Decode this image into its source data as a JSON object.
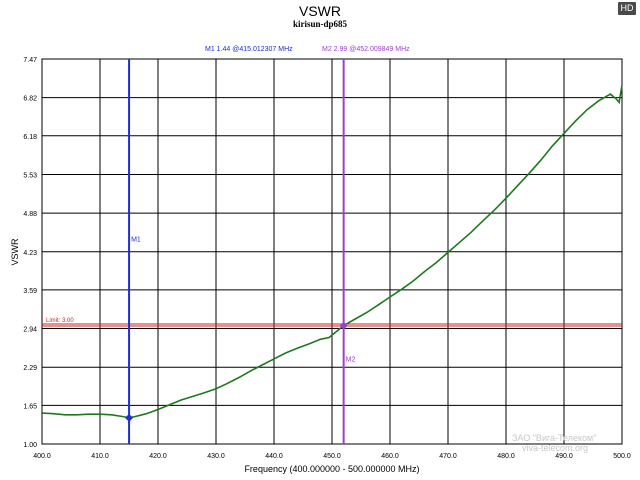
{
  "badge": "HD",
  "watermark": {
    "company": "ЗАО \"Вига-Телеком\"",
    "site": "viva-telecom.org",
    "logo_icon": "shield-logo-icon"
  },
  "chart_data": {
    "type": "line",
    "title": "VSWR",
    "subtitle": "kirisun-dp685",
    "xlabel": "Frequency (400.000000 - 500.000000 MHz)",
    "ylabel": "VSWR",
    "xlim": [
      400,
      500
    ],
    "ylim": [
      1.0,
      7.47
    ],
    "grid": true,
    "x_ticks": [
      400,
      410,
      420,
      430,
      440,
      450,
      460,
      470,
      480,
      490,
      500
    ],
    "x_tick_labels": [
      "400.0",
      "410.0",
      "420.0",
      "430.0",
      "440.0",
      "450.0",
      "460.0",
      "470.0",
      "480.0",
      "490.0",
      "500.0"
    ],
    "y_ticks": [
      1.0,
      1.65,
      2.29,
      2.94,
      3.59,
      4.23,
      4.88,
      5.53,
      6.18,
      6.82,
      7.47
    ],
    "y_tick_labels": [
      "1.00",
      "1.65",
      "2.29",
      "2.94",
      "3.59",
      "4.23",
      "4.88",
      "5.53",
      "6.18",
      "6.82",
      "7.47"
    ],
    "series": [
      {
        "color": "#1c7a1c",
        "x": [
          400,
          402,
          404,
          406,
          408,
          410,
          412,
          414,
          415,
          416,
          418,
          420,
          422,
          424,
          426,
          428,
          430,
          432,
          434,
          436,
          438,
          440,
          442,
          444,
          446,
          448,
          449.5,
          450.5,
          452,
          454,
          456,
          458,
          460,
          462,
          464,
          466,
          468,
          470,
          472,
          474,
          476,
          478,
          480,
          482,
          484,
          486,
          488,
          490,
          492,
          494,
          496,
          498,
          499,
          499.5,
          500
        ],
        "y": [
          1.52,
          1.51,
          1.49,
          1.49,
          1.5,
          1.5,
          1.49,
          1.46,
          1.44,
          1.46,
          1.51,
          1.58,
          1.66,
          1.74,
          1.8,
          1.86,
          1.93,
          2.02,
          2.12,
          2.23,
          2.33,
          2.43,
          2.53,
          2.61,
          2.68,
          2.76,
          2.79,
          2.87,
          2.99,
          3.1,
          3.21,
          3.34,
          3.47,
          3.6,
          3.74,
          3.9,
          4.05,
          4.22,
          4.39,
          4.56,
          4.75,
          4.93,
          5.13,
          5.34,
          5.55,
          5.77,
          6.01,
          6.22,
          6.43,
          6.62,
          6.77,
          6.88,
          6.8,
          6.74,
          7.03
        ]
      }
    ],
    "limit": {
      "label": "Limit: 3.00",
      "value": 3.0,
      "color": "#cc2222"
    },
    "markers": [
      {
        "name": "M1",
        "x": 415.012307,
        "y": 1.44,
        "color": "#1f2dd6",
        "readout": "M1  1.44 @415.012307 MHz"
      },
      {
        "name": "M2",
        "x": 452.009849,
        "y": 2.99,
        "color": "#9b3fd1",
        "readout": "M2  2.99 @452.009849 MHz"
      }
    ]
  }
}
